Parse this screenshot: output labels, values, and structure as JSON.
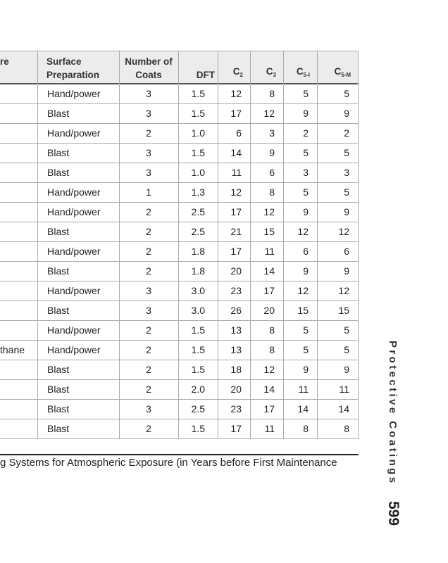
{
  "table": {
    "headers": [
      {
        "main": "re"
      },
      {
        "main": "Surface Preparation"
      },
      {
        "main": "Number of Coats"
      },
      {
        "main": "DFT"
      },
      {
        "main": "C",
        "sub": "2"
      },
      {
        "main": "C",
        "sub": "3"
      },
      {
        "main": "C",
        "sub": "5-I"
      },
      {
        "main": "C",
        "sub": "5-M"
      }
    ],
    "rows": [
      [
        null,
        "Hand/power",
        "3",
        "1.5",
        "12",
        "8",
        "5",
        "5"
      ],
      [
        null,
        "Blast",
        "3",
        "1.5",
        "17",
        "12",
        "9",
        "9"
      ],
      [
        null,
        "Hand/power",
        "2",
        "1.0",
        "6",
        "3",
        "2",
        "2"
      ],
      [
        null,
        "Blast",
        "3",
        "1.5",
        "14",
        "9",
        "5",
        "5"
      ],
      [
        null,
        "Blast",
        "3",
        "1.0",
        "11",
        "6",
        "3",
        "3"
      ],
      [
        null,
        "Hand/power",
        "1",
        "1.3",
        "12",
        "8",
        "5",
        "5"
      ],
      [
        null,
        "Hand/power",
        "2",
        "2.5",
        "17",
        "12",
        "9",
        "9"
      ],
      [
        null,
        "Blast",
        "2",
        "2.5",
        "21",
        "15",
        "12",
        "12"
      ],
      [
        null,
        "Hand/power",
        "2",
        "1.8",
        "17",
        "11",
        "6",
        "6"
      ],
      [
        null,
        "Blast",
        "2",
        "1.8",
        "20",
        "14",
        "9",
        "9"
      ],
      [
        null,
        "Hand/power",
        "3",
        "3.0",
        "23",
        "17",
        "12",
        "12"
      ],
      [
        null,
        "Blast",
        "3",
        "3.0",
        "26",
        "20",
        "15",
        "15"
      ],
      [
        null,
        "Hand/power",
        "2",
        "1.5",
        "13",
        "8",
        "5",
        "5"
      ],
      [
        "thane",
        "Hand/power",
        "2",
        "1.5",
        "13",
        "8",
        "5",
        "5"
      ],
      [
        null,
        "Blast",
        "2",
        "1.5",
        "18",
        "12",
        "9",
        "9"
      ],
      [
        null,
        "Blast",
        "2",
        "2.0",
        "20",
        "14",
        "11",
        "11"
      ],
      [
        null,
        "Blast",
        "3",
        "2.5",
        "23",
        "17",
        "14",
        "14"
      ],
      [
        null,
        "Blast",
        "2",
        "1.5",
        "17",
        "11",
        "8",
        "8"
      ]
    ],
    "caption": "g Systems for Atmospheric Exposure (in Years before First Maintenance"
  },
  "side_title": "Protective Coatings",
  "page_number": "599"
}
